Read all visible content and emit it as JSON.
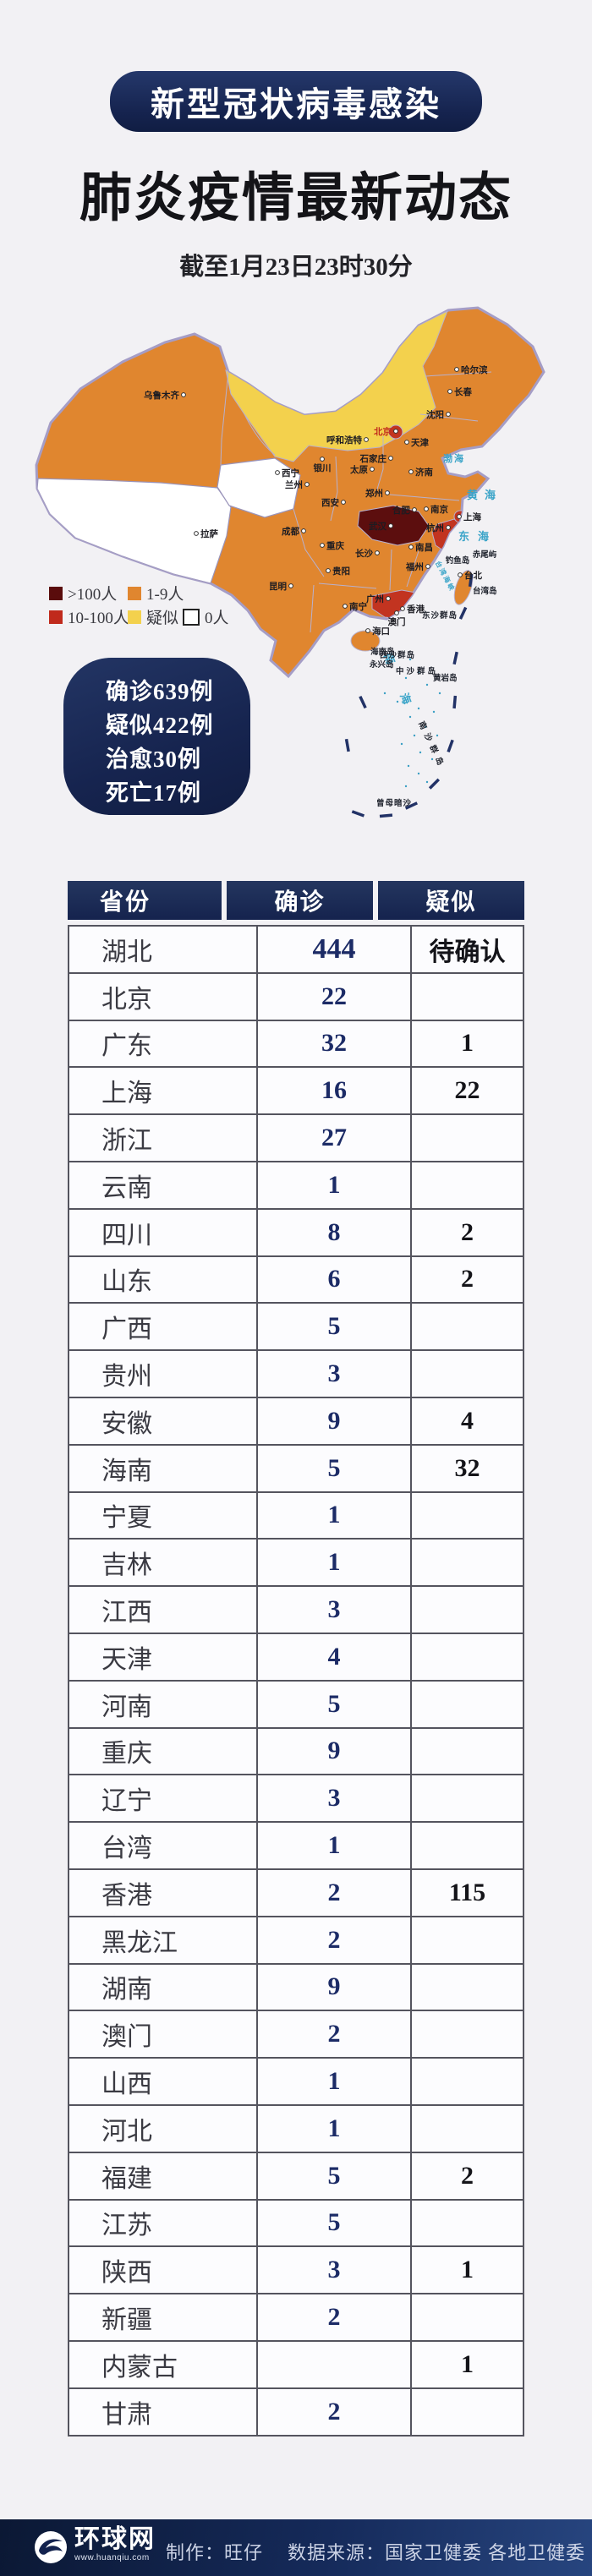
{
  "header": {
    "badge": "新型冠状病毒感染",
    "title": "肺炎疫情最新动态",
    "date": "截至1月23日23时30分"
  },
  "map": {
    "legend": [
      {
        "label": ">100人",
        "color": "#5a0c0c"
      },
      {
        "label": "1-9人",
        "color": "#e0862f"
      },
      {
        "label": "10-100人",
        "color": "#c02a1c"
      },
      {
        "label": "疑似",
        "color": "#f3d14d"
      },
      {
        "label": "0人",
        "color": "#ffffff"
      }
    ],
    "cities": [
      "乌鲁木齐",
      "哈尔滨",
      "长春",
      "沈阳",
      "呼和浩特",
      "北京",
      "天津",
      "石家庄",
      "太原",
      "济南",
      "郑州",
      "西安",
      "银川",
      "兰州",
      "西宁",
      "拉萨",
      "成都",
      "重庆",
      "武汉",
      "合肥",
      "南京",
      "上海",
      "杭州",
      "南昌",
      "长沙",
      "贵阳",
      "昆明",
      "福州",
      "台北",
      "广州",
      "香港",
      "澳门",
      "南宁",
      "海口"
    ],
    "seas": [
      "渤海",
      "黄海",
      "东海",
      "南海",
      "台湾海峡"
    ],
    "islands": [
      "钓鱼岛",
      "赤尾屿",
      "台湾岛",
      "东沙群岛",
      "海南岛",
      "西沙群岛",
      "永兴岛",
      "中沙群岛",
      "黄岩岛",
      "南沙群岛",
      "曾母暗沙"
    ]
  },
  "summary": {
    "lines": [
      "确诊639例",
      "疑似422例",
      "治愈30例",
      "死亡17例"
    ]
  },
  "table": {
    "headers": [
      "省份",
      "确诊",
      "疑似"
    ],
    "rows": [
      [
        "湖北",
        "444",
        "待确认"
      ],
      [
        "北京",
        "22",
        ""
      ],
      [
        "广东",
        "32",
        "1"
      ],
      [
        "上海",
        "16",
        "22"
      ],
      [
        "浙江",
        "27",
        ""
      ],
      [
        "云南",
        "1",
        ""
      ],
      [
        "四川",
        "8",
        "2"
      ],
      [
        "山东",
        "6",
        "2"
      ],
      [
        "广西",
        "5",
        ""
      ],
      [
        "贵州",
        "3",
        ""
      ],
      [
        "安徽",
        "9",
        "4"
      ],
      [
        "海南",
        "5",
        "32"
      ],
      [
        "宁夏",
        "1",
        ""
      ],
      [
        "吉林",
        "1",
        ""
      ],
      [
        "江西",
        "3",
        ""
      ],
      [
        "天津",
        "4",
        ""
      ],
      [
        "河南",
        "5",
        ""
      ],
      [
        "重庆",
        "9",
        ""
      ],
      [
        "辽宁",
        "3",
        ""
      ],
      [
        "台湾",
        "1",
        ""
      ],
      [
        "香港",
        "2",
        "115"
      ],
      [
        "黑龙江",
        "2",
        ""
      ],
      [
        "湖南",
        "9",
        ""
      ],
      [
        "澳门",
        "2",
        ""
      ],
      [
        "山西",
        "1",
        ""
      ],
      [
        "河北",
        "1",
        ""
      ],
      [
        "福建",
        "5",
        "2"
      ],
      [
        "江苏",
        "5",
        ""
      ],
      [
        "陕西",
        "3",
        "1"
      ],
      [
        "新疆",
        "2",
        ""
      ],
      [
        "内蒙古",
        "",
        "1"
      ],
      [
        "甘肃",
        "2",
        ""
      ]
    ]
  },
  "footer": {
    "site_name": "环球网",
    "site_url": "www.huanqiu.com",
    "credit": "制作：旺仔",
    "source": "数据来源：国家卫健委 各地卫健委"
  },
  "colors": {
    "navy": "#16244f",
    "page_bg": "#f2f1f4",
    "orange": "#e0862f",
    "yellow": "#f3d14d",
    "red": "#c23420",
    "dark_red": "#5c0e0e",
    "sea_text": "#3aa4c8",
    "confirmed_text": "#1c2b66"
  },
  "chart_data": {
    "type": "table",
    "title": "肺炎疫情最新动态",
    "subtitle": "新型冠状病毒感染",
    "as_of": "截至1月23日23时30分",
    "columns": [
      "省份",
      "确诊",
      "疑似"
    ],
    "rows": [
      [
        "湖北",
        444,
        "待确认"
      ],
      [
        "北京",
        22,
        null
      ],
      [
        "广东",
        32,
        1
      ],
      [
        "上海",
        16,
        22
      ],
      [
        "浙江",
        27,
        null
      ],
      [
        "云南",
        1,
        null
      ],
      [
        "四川",
        8,
        2
      ],
      [
        "山东",
        6,
        2
      ],
      [
        "广西",
        5,
        null
      ],
      [
        "贵州",
        3,
        null
      ],
      [
        "安徽",
        9,
        4
      ],
      [
        "海南",
        5,
        32
      ],
      [
        "宁夏",
        1,
        null
      ],
      [
        "吉林",
        1,
        null
      ],
      [
        "江西",
        3,
        null
      ],
      [
        "天津",
        4,
        null
      ],
      [
        "河南",
        5,
        null
      ],
      [
        "重庆",
        9,
        null
      ],
      [
        "辽宁",
        3,
        null
      ],
      [
        "台湾",
        1,
        null
      ],
      [
        "香港",
        2,
        115
      ],
      [
        "黑龙江",
        2,
        null
      ],
      [
        "湖南",
        9,
        null
      ],
      [
        "澳门",
        2,
        null
      ],
      [
        "山西",
        1,
        null
      ],
      [
        "河北",
        1,
        null
      ],
      [
        "福建",
        5,
        2
      ],
      [
        "江苏",
        5,
        null
      ],
      [
        "陕西",
        3,
        1
      ],
      [
        "新疆",
        2,
        null
      ],
      [
        "内蒙古",
        null,
        1
      ],
      [
        "甘肃",
        2,
        null
      ]
    ],
    "totals": {
      "确诊": 639,
      "疑似": 422,
      "治愈": 30,
      "死亡": 17
    },
    "map_choropleth": {
      "legend_bins": [
        ">100人",
        "10-100人",
        "1-9人",
        "疑似",
        "0人"
      ],
      "dark_red": [
        "湖北"
      ],
      "red": [
        "北京",
        "上海",
        "浙江",
        "广东"
      ],
      "yellow": [
        "内蒙古"
      ],
      "white": [
        "西藏",
        "青海"
      ]
    }
  }
}
